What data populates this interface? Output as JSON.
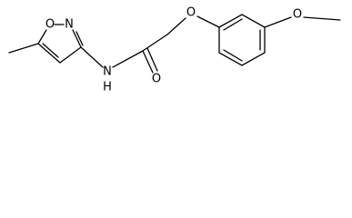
{
  "atoms": {
    "ring_o": "O",
    "ring_n": "N",
    "amide_n": "N",
    "amide_h": "H",
    "carbonyl_o": "O",
    "ether_o": "O",
    "methoxy_o": "O"
  }
}
